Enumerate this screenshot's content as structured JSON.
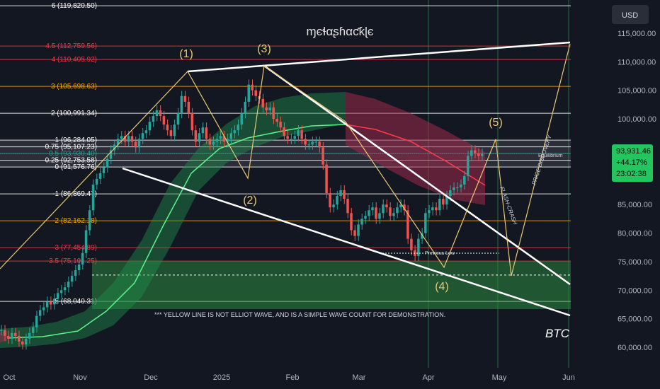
{
  "chart_data": {
    "type": "line",
    "title": "",
    "watermark": "ɱєɬαʂɦαƈƙɭє",
    "symbol": "BTC",
    "currency": "USD",
    "y_ticks": [
      "115,000.00",
      "110,000.00",
      "105,000.00",
      "100,000.00",
      "95,000.00",
      "85,000.00",
      "80,000.00",
      "75,000.00",
      "70,000.00",
      "65,000.00",
      "60,000.00"
    ],
    "y_tick_values": [
      115000,
      110000,
      105000,
      100000,
      95000,
      85000,
      80000,
      75000,
      70000,
      65000,
      60000
    ],
    "ylim": [
      58000,
      120000
    ],
    "x_months": [
      "Oct",
      "Nov",
      "Dec",
      "2025",
      "Feb",
      "Mar",
      "Apr",
      "May",
      "Jun"
    ],
    "current_price": {
      "value": 93931.46,
      "label": "93,931.46",
      "change": "+44.17%",
      "countdown": "23:02:38"
    },
    "fib_levels": [
      {
        "label": "6 (119,820.50)",
        "value": 119820.5,
        "color": "#ffffff"
      },
      {
        "label": "4.5 (112,759.56)",
        "value": 112759.56,
        "color": "#f23645"
      },
      {
        "label": "4 (110,405.92)",
        "value": 110405.92,
        "color": "#f23645"
      },
      {
        "label": "3 (105,698.63)",
        "value": 105698.63,
        "color": "#f7a600"
      },
      {
        "label": "2 (100,991.34)",
        "value": 100991.34,
        "color": "#ffffff"
      },
      {
        "label": "1 (96,284.05)",
        "value": 96284.05,
        "color": "#ffffff"
      },
      {
        "label": "0.75 (95,107.23)",
        "value": 95107.23,
        "color": "#ffffff"
      },
      {
        "label": "0.5 (93,930.40)",
        "value": 93930.4,
        "color": "#089981"
      },
      {
        "label": "0.25 (92,753.58)",
        "value": 92753.58,
        "color": "#ffffff"
      },
      {
        "label": "0 (91,576.76)",
        "value": 91576.76,
        "color": "#ffffff"
      },
      {
        "label": "-1 (86,869.47)",
        "value": 86869.47,
        "color": "#ffffff"
      },
      {
        "label": "-2 (82,162.18)",
        "value": 82162.18,
        "color": "#f7a600"
      },
      {
        "label": "-3 (77,454.89)",
        "value": 77454.89,
        "color": "#f23645"
      },
      {
        "label": "-3.5 (75,101.25)",
        "value": 75101.25,
        "color": "#f23645"
      },
      {
        "label": "-5 (68,040.31)",
        "value": 68040.31,
        "color": "#ffffff"
      }
    ],
    "zone_labels": [
      {
        "label": "72,645",
        "value": 72645
      },
      {
        "label": "67,430",
        "value": 67430
      }
    ],
    "wave_labels": [
      "(1)",
      "(3)",
      "(2)",
      "(5)",
      "(4)"
    ],
    "annotations": {
      "note": "*** YELLOW LINE IS NOT ELLIOT WAVE, AND IS A SIMPLE WAVE COUNT FOR DEMONSTRATION.",
      "previous_low": "Previous Low",
      "equilibrium": "Equilibrium",
      "flash_crash": "FLASH-CRASH",
      "price_discovery": "PRICE DISCOVERY"
    },
    "price_series": {
      "t": [
        0,
        5,
        10,
        15,
        20,
        25,
        30,
        35,
        40,
        45,
        50,
        55,
        60,
        65,
        70,
        75,
        80,
        85,
        90,
        95,
        100,
        105,
        110,
        115,
        120,
        125,
        130,
        135,
        140,
        145,
        150,
        155,
        160,
        165,
        170,
        175,
        180,
        185,
        190,
        195,
        200,
        205,
        210,
        215,
        220,
        225,
        230,
        235,
        240,
        245,
        250,
        255,
        260,
        265,
        270,
        275,
        280,
        285,
        290,
        295,
        300,
        305,
        310,
        315,
        320,
        325,
        330,
        335,
        340,
        345,
        350,
        355,
        360,
        365,
        370,
        375,
        380,
        385,
        390,
        395,
        400,
        405,
        410,
        415,
        420,
        425,
        430,
        435,
        440,
        445,
        450,
        455,
        460,
        465,
        470,
        475,
        480,
        485,
        490,
        495,
        500,
        505,
        510,
        515,
        520,
        525,
        530,
        535,
        540,
        545,
        550,
        555,
        560,
        565,
        570,
        575,
        580,
        585,
        590,
        595,
        600,
        605,
        610,
        615,
        620,
        625,
        630,
        635,
        640,
        645,
        650,
        655,
        660,
        665,
        670,
        675,
        680
      ],
      "v": [
        63000,
        62000,
        61500,
        62500,
        62000,
        61000,
        60500,
        61500,
        62500,
        63500,
        65500,
        66500,
        67000,
        68000,
        67500,
        68500,
        69500,
        70000,
        70500,
        71500,
        72500,
        73500,
        74500,
        76500,
        80500,
        84000,
        88500,
        89500,
        90500,
        91500,
        93000,
        94500,
        95500,
        96500,
        97000,
        96000,
        97000,
        96000,
        95000,
        96500,
        97500,
        98000,
        99500,
        100500,
        101500,
        100500,
        99000,
        98000,
        97000,
        99000,
        101000,
        104000,
        103000,
        101000,
        98000,
        96000,
        97500,
        98500,
        96500,
        95500,
        96000,
        96500,
        97000,
        96000,
        96500,
        97500,
        98000,
        99000,
        101000,
        103000,
        106000,
        105000,
        104000,
        103500,
        102000,
        101500,
        102000,
        100000,
        99500,
        98500,
        97000,
        96500,
        96500,
        97000,
        98000,
        96500,
        95500,
        95500,
        96000,
        96000,
        95000,
        92000,
        87000,
        84500,
        85000,
        86500,
        87500,
        86000,
        83500,
        80500,
        79500,
        81500,
        82500,
        83000,
        84000,
        84500,
        82500,
        83500,
        85000,
        84500,
        83000,
        83500,
        84500,
        85000,
        84000,
        79000,
        77000,
        76000,
        79000,
        80000,
        83500,
        84000,
        84500,
        84000,
        86000,
        85000,
        86500,
        87500,
        88000,
        88000,
        88500,
        90000,
        93500,
        94500,
        94000,
        93500,
        93900
      ]
    }
  }
}
